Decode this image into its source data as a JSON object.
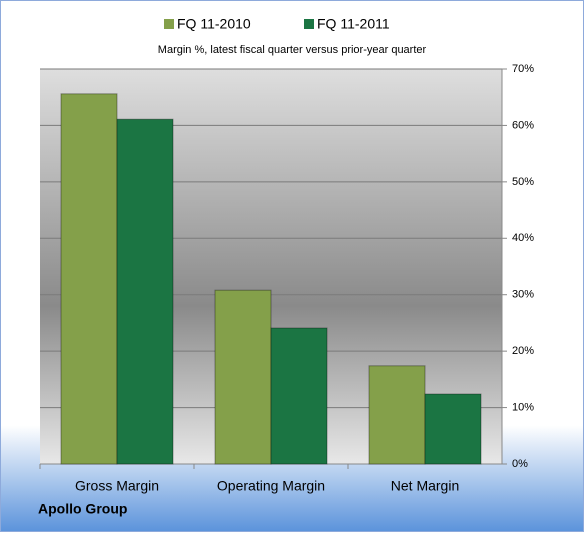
{
  "chart_data": {
    "type": "bar",
    "subtitle": "Margin %,  latest fiscal quarter versus prior-year quarter",
    "footer": "Apollo Group",
    "categories": [
      "Gross Margin",
      "Operating Margin",
      "Net Margin"
    ],
    "series": [
      {
        "name": "FQ 11-2010",
        "color": "#84a04a",
        "values": [
          65.6,
          30.8,
          17.4
        ]
      },
      {
        "name": "FQ 11-2011",
        "color": "#1b7543",
        "values": [
          61.1,
          24.1,
          12.4
        ]
      }
    ],
    "ylim": [
      0,
      70
    ],
    "yticks": [
      {
        "value": 0,
        "label": "0%"
      },
      {
        "value": 10,
        "label": "10%"
      },
      {
        "value": 20,
        "label": "20%"
      },
      {
        "value": 30,
        "label": "30%"
      },
      {
        "value": 40,
        "label": "40%"
      },
      {
        "value": 50,
        "label": "50%"
      },
      {
        "value": 60,
        "label": "60%"
      },
      {
        "value": 70,
        "label": "70%"
      }
    ],
    "y_axis_side": "right",
    "grid": true,
    "legend": "top"
  }
}
